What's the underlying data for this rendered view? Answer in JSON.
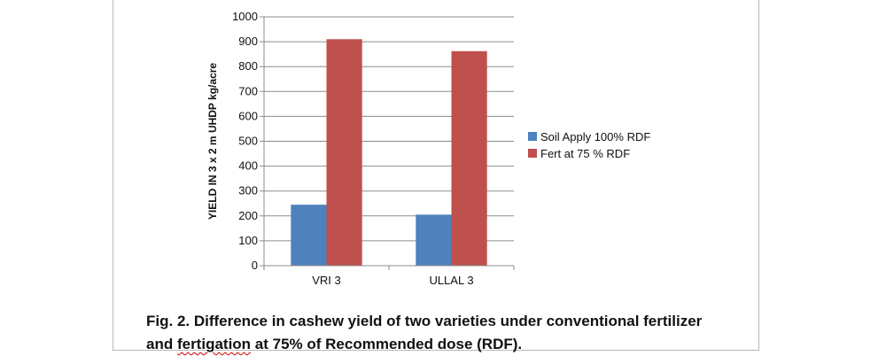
{
  "chart_data": {
    "type": "bar",
    "categories": [
      "VRI 3",
      "ULLAL 3"
    ],
    "series": [
      {
        "name": "Soil Apply  100% RDF",
        "color": "#4f81bd",
        "values": [
          245,
          205
        ]
      },
      {
        "name": "Fert at 75 % RDF",
        "color": "#c0504d",
        "values": [
          910,
          862
        ]
      }
    ],
    "ylabel": "YIELD IN 3 x 2 m UHDP  kg/acre",
    "xlabel": "",
    "ylim": [
      0,
      1000
    ],
    "yticks": [
      0,
      100,
      200,
      300,
      400,
      500,
      600,
      700,
      800,
      900,
      1000
    ],
    "grid": true,
    "legend": "right"
  },
  "caption": {
    "line1": "Fig. 2.   Difference in cashew yield of two varieties under conventional fertilizer",
    "line2_pre": "and ",
    "line2_word": "fertigation",
    "line2_post": " at 75% of  Recommended dose (RDF)."
  }
}
